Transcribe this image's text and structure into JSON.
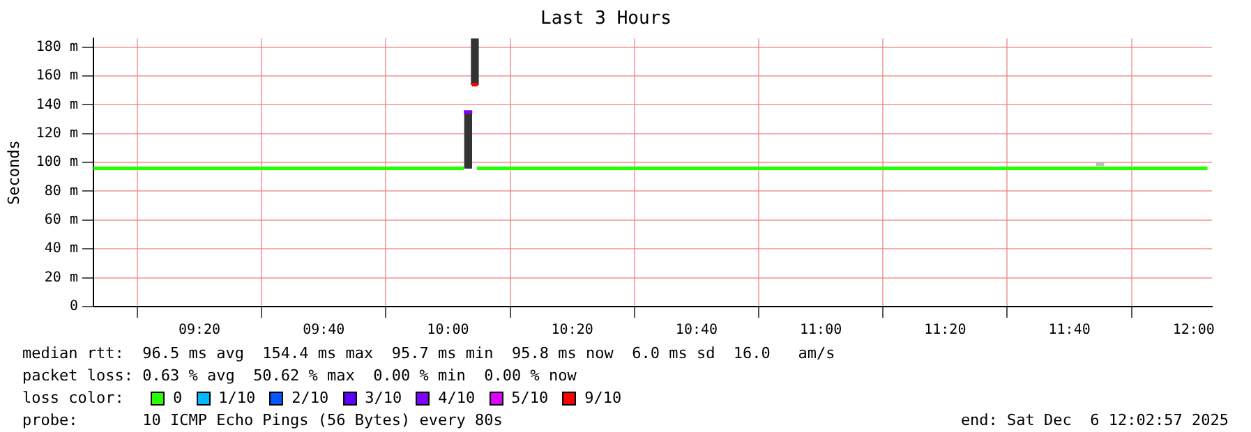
{
  "chart_data": {
    "type": "line",
    "title": "Last 3 Hours",
    "ylabel": "Seconds",
    "xlim": [
      9.049,
      12.049
    ],
    "ylim": [
      0,
      186
    ],
    "xticks": [
      {
        "value": 9.3333,
        "label": "09:20"
      },
      {
        "value": 9.6667,
        "label": "09:40"
      },
      {
        "value": 10,
        "label": "10:00"
      },
      {
        "value": 10.3333,
        "label": "10:20"
      },
      {
        "value": 10.6667,
        "label": "10:40"
      },
      {
        "value": 11,
        "label": "11:00"
      },
      {
        "value": 11.3333,
        "label": "11:20"
      },
      {
        "value": 11.6667,
        "label": "11:40"
      },
      {
        "value": 12,
        "label": "12:00"
      }
    ],
    "yticks": [
      0,
      {
        "value": 20,
        "label": "20 m"
      },
      {
        "value": 40,
        "label": "40 m"
      },
      {
        "value": 60,
        "label": "60 m"
      },
      {
        "value": 80,
        "label": "80 m"
      },
      {
        "value": 100,
        "label": "100 m"
      },
      {
        "value": 120,
        "label": "120 m"
      },
      {
        "value": 140,
        "label": "140 m"
      },
      {
        "value": 160,
        "label": "160 m"
      },
      {
        "value": 180,
        "label": "180 m"
      }
    ],
    "grid": true,
    "legend": "bottom",
    "legend_title": "loss color:",
    "series": [
      {
        "type": "bar",
        "colors": [
          "#333333",
          "#333333",
          "#bbbbbb"
        ],
        "x": [
          10.054,
          10.072,
          11.749
        ],
        "base": [
          96,
          154,
          98
        ],
        "values": [
          39,
          32,
          2
        ]
      },
      {
        "name": "0",
        "color": "#26ff00",
        "x": [
          9.049,
          10.0425,
          10.06,
          10.0775,
          12.037
        ],
        "values": [
          96,
          96,
          null,
          96,
          96
        ]
      },
      {
        "name": "1/10",
        "color": "#00b8ff"
      },
      {
        "name": "2/10",
        "color": "#0059ff"
      },
      {
        "name": "3/10",
        "color": "#5e00ff"
      },
      {
        "name": "4/10",
        "color": "#7e00ff",
        "x": [
          10.0425,
          10.065
        ],
        "values": [
          135,
          135
        ]
      },
      {
        "name": "5/10",
        "color": "#dd00ff"
      },
      {
        "name": "9/10",
        "color": "#ff0000",
        "x": [
          10.064,
          10.08
        ],
        "values": [
          154,
          154
        ]
      }
    ],
    "annotations": [
      "median rtt:  96.5 ms avg  154.4 ms max  95.7 ms min  95.8 ms now  6.0 ms sd  16.0   am/s",
      "packet loss: 0.63 % avg  50.62 % max  0.00 % min  0.00 % now",
      "probe:       10 ICMP Echo Pings (56 Bytes) every 80s",
      "end: Sat Dec  6 12:02:57 2025"
    ]
  }
}
